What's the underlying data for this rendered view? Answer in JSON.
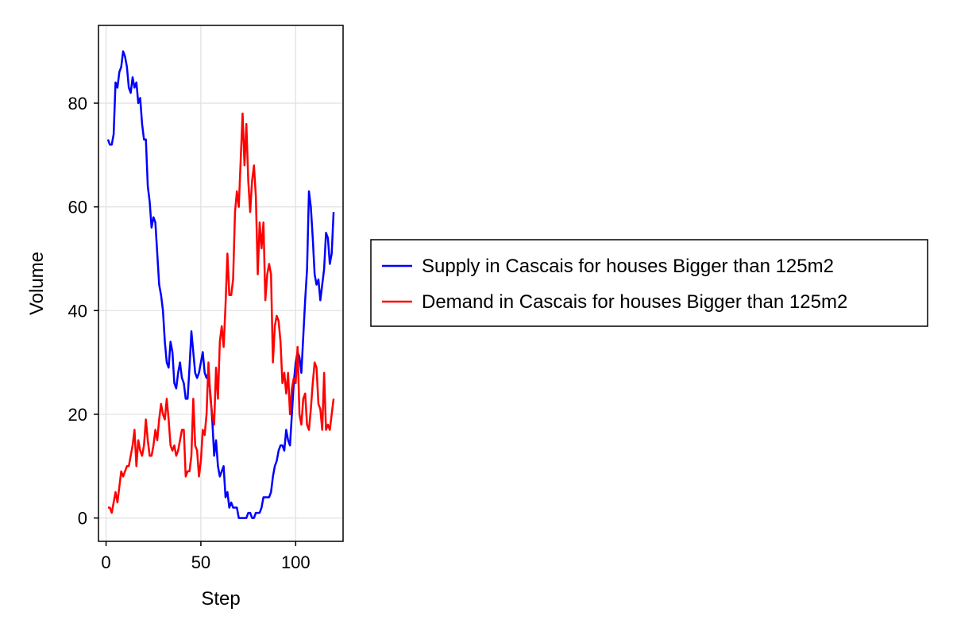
{
  "chart_data": {
    "type": "line",
    "title": "",
    "xlabel": "Step",
    "ylabel": "Volume",
    "xlim": [
      -4,
      125
    ],
    "ylim": [
      -4.5,
      95
    ],
    "xticks": [
      0,
      50,
      100
    ],
    "yticks": [
      0,
      20,
      40,
      60,
      80
    ],
    "grid": true,
    "legend_position": "right",
    "series": [
      {
        "name": "Supply in Cascais for houses Bigger than 125m2",
        "color": "#0000ff",
        "x": [
          1,
          2,
          3,
          4,
          5,
          6,
          7,
          8,
          9,
          10,
          11,
          12,
          13,
          14,
          15,
          16,
          17,
          18,
          19,
          20,
          21,
          22,
          23,
          24,
          25,
          26,
          27,
          28,
          29,
          30,
          31,
          32,
          33,
          34,
          35,
          36,
          37,
          38,
          39,
          40,
          41,
          42,
          43,
          44,
          45,
          46,
          47,
          48,
          49,
          50,
          51,
          52,
          53,
          54,
          55,
          56,
          57,
          58,
          59,
          60,
          61,
          62,
          63,
          64,
          65,
          66,
          67,
          68,
          69,
          70,
          71,
          72,
          73,
          74,
          75,
          76,
          77,
          78,
          79,
          80,
          81,
          82,
          83,
          84,
          85,
          86,
          87,
          88,
          89,
          90,
          91,
          92,
          93,
          94,
          95,
          96,
          97,
          98,
          99,
          100,
          101,
          102,
          103,
          104,
          105,
          106,
          107,
          108,
          109,
          110,
          111,
          112,
          113,
          114,
          115,
          116,
          117,
          118,
          119,
          120
        ],
        "values": [
          73,
          72,
          72,
          74,
          84,
          83,
          86,
          87,
          90,
          89,
          87,
          83,
          82,
          85,
          83,
          84,
          80,
          81,
          76,
          73,
          73,
          64,
          61,
          56,
          58,
          57,
          51,
          45,
          43,
          40,
          34,
          30,
          29,
          34,
          32,
          26,
          25,
          28,
          30,
          27,
          26,
          23,
          23,
          29,
          36,
          32,
          28,
          27,
          28,
          30,
          32,
          28,
          27,
          28,
          24,
          19,
          12,
          15,
          10,
          8,
          9,
          10,
          4,
          5,
          2,
          3,
          2,
          2,
          2,
          0,
          0,
          0,
          0,
          0,
          1,
          1,
          0,
          0,
          1,
          1,
          1,
          2,
          4,
          4,
          4,
          4,
          5,
          8,
          10,
          11,
          13,
          14,
          14,
          13,
          17,
          15,
          14,
          20,
          26,
          30,
          32,
          31,
          28,
          35,
          42,
          48,
          63,
          60,
          54,
          47,
          45,
          46,
          42,
          45,
          48,
          55,
          54,
          49,
          51,
          59
        ]
      },
      {
        "name": "Demand in Cascais for houses Bigger than 125m2",
        "color": "#ff0000",
        "x": [
          1,
          2,
          3,
          4,
          5,
          6,
          7,
          8,
          9,
          10,
          11,
          12,
          13,
          14,
          15,
          16,
          17,
          18,
          19,
          20,
          21,
          22,
          23,
          24,
          25,
          26,
          27,
          28,
          29,
          30,
          31,
          32,
          33,
          34,
          35,
          36,
          37,
          38,
          39,
          40,
          41,
          42,
          43,
          44,
          45,
          46,
          47,
          48,
          49,
          50,
          51,
          52,
          53,
          54,
          55,
          56,
          57,
          58,
          59,
          60,
          61,
          62,
          63,
          64,
          65,
          66,
          67,
          68,
          69,
          70,
          71,
          72,
          73,
          74,
          75,
          76,
          77,
          78,
          79,
          80,
          81,
          82,
          83,
          84,
          85,
          86,
          87,
          88,
          89,
          90,
          91,
          92,
          93,
          94,
          95,
          96,
          97,
          98,
          99,
          100,
          101,
          102,
          103,
          104,
          105,
          106,
          107,
          108,
          109,
          110,
          111,
          112,
          113,
          114,
          115,
          116,
          117,
          118,
          119,
          120
        ],
        "values": [
          2,
          2,
          1,
          3,
          5,
          3,
          6,
          9,
          8,
          9,
          10,
          10,
          12,
          14,
          17,
          10,
          15,
          13,
          12,
          14,
          19,
          15,
          12,
          12,
          14,
          17,
          15,
          19,
          22,
          20,
          19,
          23,
          19,
          14,
          13,
          14,
          12,
          13,
          15,
          17,
          17,
          8,
          9,
          9,
          12,
          23,
          14,
          13,
          8,
          11,
          17,
          16,
          20,
          30,
          23,
          20,
          18,
          29,
          23,
          34,
          37,
          33,
          41,
          51,
          43,
          43,
          46,
          59,
          63,
          60,
          69,
          78,
          68,
          76,
          65,
          59,
          65,
          68,
          62,
          47,
          57,
          52,
          57,
          42,
          47,
          49,
          47,
          30,
          37,
          39,
          38,
          34,
          26,
          28,
          24,
          28,
          20,
          25,
          27,
          26,
          33,
          20,
          18,
          23,
          24,
          18,
          17,
          21,
          26,
          30,
          29,
          22,
          21,
          17,
          28,
          17,
          18,
          17,
          20,
          23
        ]
      }
    ]
  }
}
